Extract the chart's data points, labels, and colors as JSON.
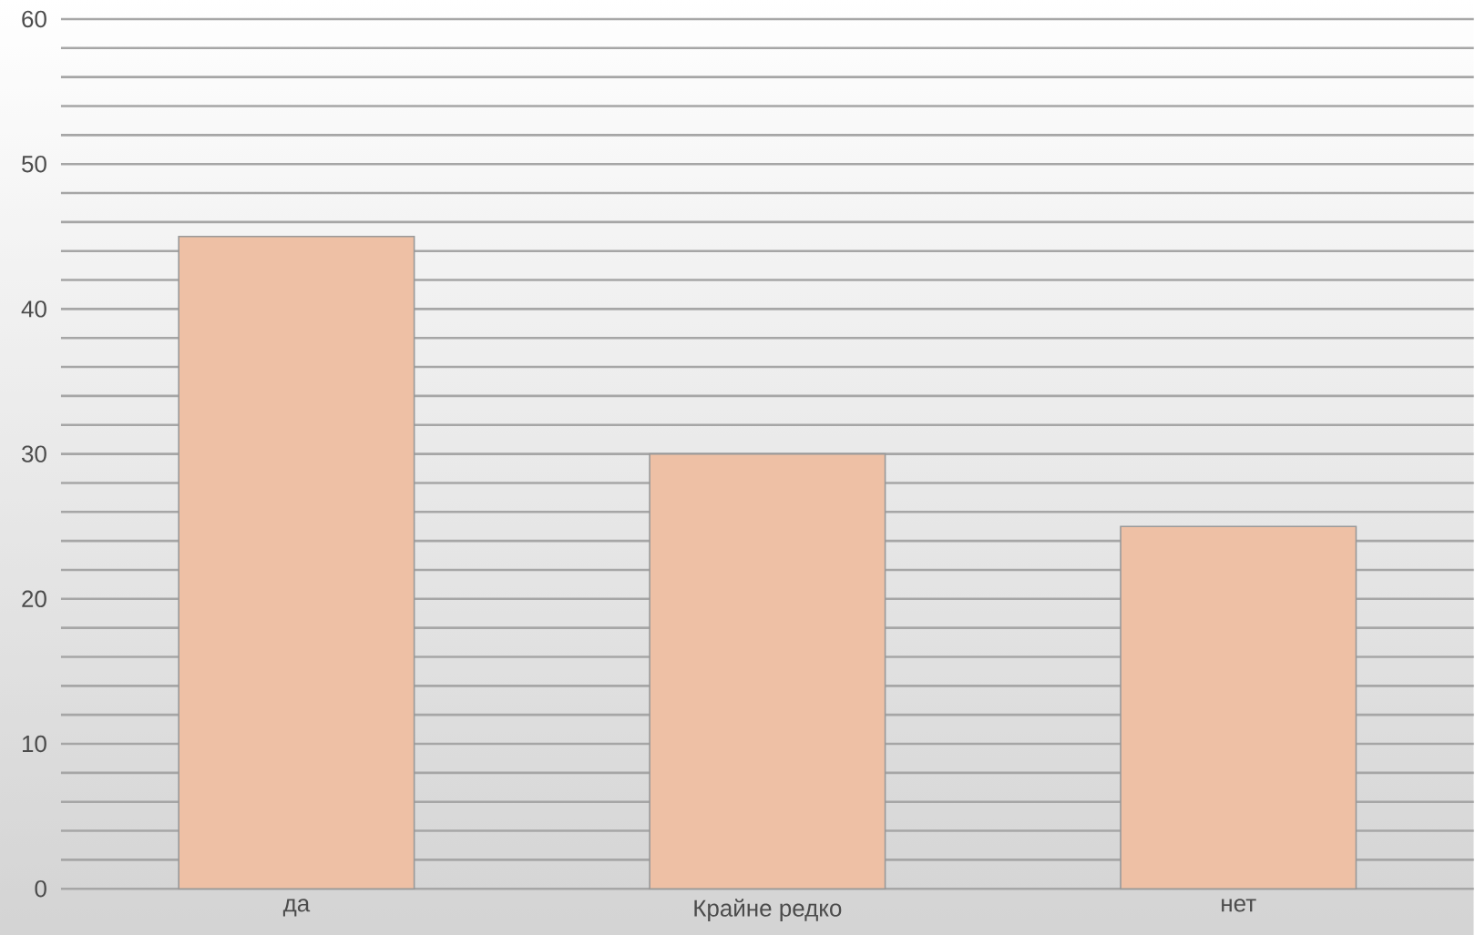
{
  "chart_data": {
    "type": "bar",
    "categories": [
      "да",
      "Крайне редко",
      "нет"
    ],
    "values": [
      45,
      30,
      25
    ],
    "color": "#eec0a5",
    "ylim": [
      0,
      60
    ],
    "yticks": [
      0,
      {
        "value": 2,
        "label": null
      },
      {
        "value": 4,
        "label": null
      },
      {
        "value": 6,
        "label": null
      },
      {
        "value": 8,
        "label": null
      },
      10,
      {
        "value": 12,
        "label": null
      },
      {
        "value": 14,
        "label": null
      },
      {
        "value": 16,
        "label": null
      },
      {
        "value": 18,
        "label": null
      },
      20,
      {
        "value": 22,
        "label": null
      },
      {
        "value": 24,
        "label": null
      },
      {
        "value": 26,
        "label": null
      },
      {
        "value": 28,
        "label": null
      },
      30,
      {
        "value": 32,
        "label": null
      },
      {
        "value": 34,
        "label": null
      },
      {
        "value": 36,
        "label": null
      },
      {
        "value": 38,
        "label": null
      },
      40,
      {
        "value": 42,
        "label": null
      },
      {
        "value": 44,
        "label": null
      },
      {
        "value": 46,
        "label": null
      },
      {
        "value": 48,
        "label": null
      },
      50,
      {
        "value": 52,
        "label": null
      },
      {
        "value": 54,
        "label": null
      },
      {
        "value": 56,
        "label": null
      },
      {
        "value": 58,
        "label": null
      },
      60
    ],
    "grid": "y"
  }
}
